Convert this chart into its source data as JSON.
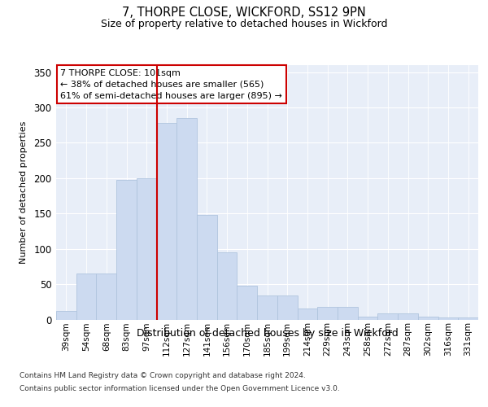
{
  "title1": "7, THORPE CLOSE, WICKFORD, SS12 9PN",
  "title2": "Size of property relative to detached houses in Wickford",
  "xlabel": "Distribution of detached houses by size in Wickford",
  "ylabel": "Number of detached properties",
  "categories": [
    "39sqm",
    "54sqm",
    "68sqm",
    "83sqm",
    "97sqm",
    "112sqm",
    "127sqm",
    "141sqm",
    "156sqm",
    "170sqm",
    "185sqm",
    "199sqm",
    "214sqm",
    "229sqm",
    "243sqm",
    "258sqm",
    "272sqm",
    "287sqm",
    "302sqm",
    "316sqm",
    "331sqm"
  ],
  "values": [
    12,
    65,
    65,
    198,
    200,
    278,
    285,
    148,
    95,
    48,
    34,
    34,
    16,
    18,
    18,
    4,
    9,
    9,
    4,
    3,
    3
  ],
  "bar_color": "#ccdaf0",
  "bar_edgecolor": "#b0c4de",
  "bg_color": "#e8eef8",
  "grid_color": "#ffffff",
  "annotation_title": "7 THORPE CLOSE: 101sqm",
  "annotation_line1": "← 38% of detached houses are smaller (565)",
  "annotation_line2": "61% of semi-detached houses are larger (895) →",
  "annotation_box_color": "#ffffff",
  "annotation_border_color": "#cc0000",
  "redline_color": "#cc0000",
  "footer1": "Contains HM Land Registry data © Crown copyright and database right 2024.",
  "footer2": "Contains public sector information licensed under the Open Government Licence v3.0.",
  "ylim": [
    0,
    360
  ],
  "yticks": [
    0,
    50,
    100,
    150,
    200,
    250,
    300,
    350
  ]
}
